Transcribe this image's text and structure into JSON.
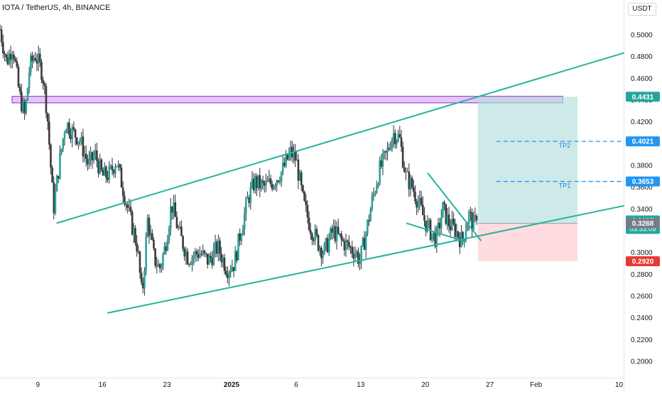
{
  "header": {
    "title": "IOTA / TetherUS, 4h, BINANCE",
    "unit": "USDT"
  },
  "colors": {
    "up": "#26a69a",
    "down": "#ef5350",
    "candle_body": "#3a3a3a",
    "trendline": "#26b39b",
    "resistance_zone": "#d9b3ff",
    "resistance_border": "#9c27b0",
    "profit_zone": "#b2dfdb",
    "loss_zone": "#ffcdd2",
    "tp_line": "#2196f3"
  },
  "chart_data": {
    "type": "candlestick",
    "title": "IOTA / TetherUS, 4h, BINANCE",
    "ylabel": "USDT",
    "ylim": [
      0.185,
      0.532
    ],
    "y_scale": "linear",
    "grid": false,
    "y_ticks": [
      "0.5000",
      "0.4800",
      "0.4600",
      "0.4400",
      "0.4200",
      "0.4000",
      "0.3800",
      "0.3600",
      "0.3400",
      "0.3200",
      "0.3000",
      "0.2800",
      "0.2600",
      "0.2400",
      "0.2200",
      "0.2000"
    ],
    "x_ticks": [
      {
        "label": "9",
        "day": 9
      },
      {
        "label": "16",
        "day": 16
      },
      {
        "label": "23",
        "day": 23
      },
      {
        "label": "2025",
        "day": 30
      },
      {
        "label": "6",
        "day": 37
      },
      {
        "label": "13",
        "day": 44
      },
      {
        "label": "20",
        "day": 51
      },
      {
        "label": "27",
        "day": 58
      },
      {
        "label": "Feb",
        "day": 63
      },
      {
        "label": "10",
        "day": 72
      }
    ],
    "x_day_range": [
      4.9,
      72.5
    ],
    "price_path": [
      [
        4.9,
        0.505
      ],
      [
        5.6,
        0.475
      ],
      [
        6.3,
        0.49
      ],
      [
        7.0,
        0.445
      ],
      [
        7.6,
        0.425
      ],
      [
        8.1,
        0.47
      ],
      [
        8.7,
        0.482
      ],
      [
        9.5,
        0.465
      ],
      [
        10.0,
        0.43
      ],
      [
        10.7,
        0.34
      ],
      [
        11.3,
        0.38
      ],
      [
        12.0,
        0.42
      ],
      [
        12.8,
        0.41
      ],
      [
        13.5,
        0.405
      ],
      [
        14.5,
        0.38
      ],
      [
        15.2,
        0.39
      ],
      [
        16.0,
        0.37
      ],
      [
        16.8,
        0.372
      ],
      [
        17.5,
        0.385
      ],
      [
        18.2,
        0.36
      ],
      [
        18.9,
        0.335
      ],
      [
        19.8,
        0.305
      ],
      [
        20.3,
        0.258
      ],
      [
        20.9,
        0.33
      ],
      [
        21.6,
        0.295
      ],
      [
        22.2,
        0.285
      ],
      [
        22.8,
        0.305
      ],
      [
        23.5,
        0.345
      ],
      [
        24.3,
        0.318
      ],
      [
        25.3,
        0.295
      ],
      [
        26.5,
        0.3
      ],
      [
        27.5,
        0.292
      ],
      [
        28.5,
        0.305
      ],
      [
        29.5,
        0.285
      ],
      [
        30.3,
        0.29
      ],
      [
        31.0,
        0.32
      ],
      [
        31.8,
        0.35
      ],
      [
        32.5,
        0.365
      ],
      [
        33.5,
        0.36
      ],
      [
        34.5,
        0.365
      ],
      [
        35.5,
        0.375
      ],
      [
        36.4,
        0.392
      ],
      [
        37.0,
        0.385
      ],
      [
        37.8,
        0.345
      ],
      [
        38.5,
        0.325
      ],
      [
        39.3,
        0.31
      ],
      [
        40.0,
        0.3
      ],
      [
        41.0,
        0.32
      ],
      [
        42.0,
        0.31
      ],
      [
        43.5,
        0.3
      ],
      [
        43.9,
        0.292
      ],
      [
        44.5,
        0.315
      ],
      [
        45.3,
        0.35
      ],
      [
        46.0,
        0.375
      ],
      [
        46.8,
        0.39
      ],
      [
        47.5,
        0.41
      ],
      [
        48.2,
        0.405
      ],
      [
        48.9,
        0.37
      ],
      [
        49.6,
        0.36
      ],
      [
        50.3,
        0.345
      ],
      [
        50.9,
        0.33
      ],
      [
        51.5,
        0.32
      ],
      [
        52.2,
        0.312
      ],
      [
        52.9,
        0.34
      ],
      [
        53.6,
        0.326
      ],
      [
        54.3,
        0.32
      ],
      [
        55.0,
        0.31
      ],
      [
        55.7,
        0.335
      ],
      [
        56.2,
        0.325
      ],
      [
        56.6,
        0.3295
      ]
    ],
    "annotations": {
      "resistance_zone": {
        "y_low": 0.4375,
        "y_high": 0.4435
      },
      "upper_channel_line": {
        "p1": [
          11.1,
          0.3271
        ],
        "p2": [
          72.5,
          0.4833
        ]
      },
      "lower_channel_line": {
        "p1": [
          16.6,
          0.2445
        ],
        "p2": [
          72.5,
          0.3429
        ]
      },
      "wedge_top": {
        "p1": [
          51.3,
          0.3726
        ],
        "p2": [
          57.0,
          0.3112
        ]
      },
      "wedge_bottom": {
        "p1": [
          49.0,
          0.3268
        ],
        "p2": [
          55.4,
          0.3098
        ]
      },
      "position": {
        "x_start": 56.7,
        "x_end": 67.5,
        "entry": 0.3268,
        "target": 0.4431,
        "stop": 0.292
      },
      "tp_lines": [
        {
          "label": "TP2",
          "y": 0.4021,
          "x_start": 58.7
        },
        {
          "label": "TP1",
          "y": 0.3653,
          "x_start": 58.7
        }
      ]
    },
    "price_labels": [
      {
        "text": "0.4431",
        "y": 0.4431,
        "color": "#26a69a"
      },
      {
        "text": "0.4021",
        "y": 0.4021,
        "color": "#2196f3"
      },
      {
        "text": "0.3653",
        "y": 0.3653,
        "color": "#2196f3"
      },
      {
        "text": "0.3295",
        "sub": "03:33:09",
        "y": 0.3295,
        "color": "#26a69a"
      },
      {
        "text": "0.3268",
        "y": 0.3268,
        "color": "#787b86"
      },
      {
        "text": "0.2920",
        "y": 0.292,
        "color": "#e53935"
      }
    ]
  }
}
